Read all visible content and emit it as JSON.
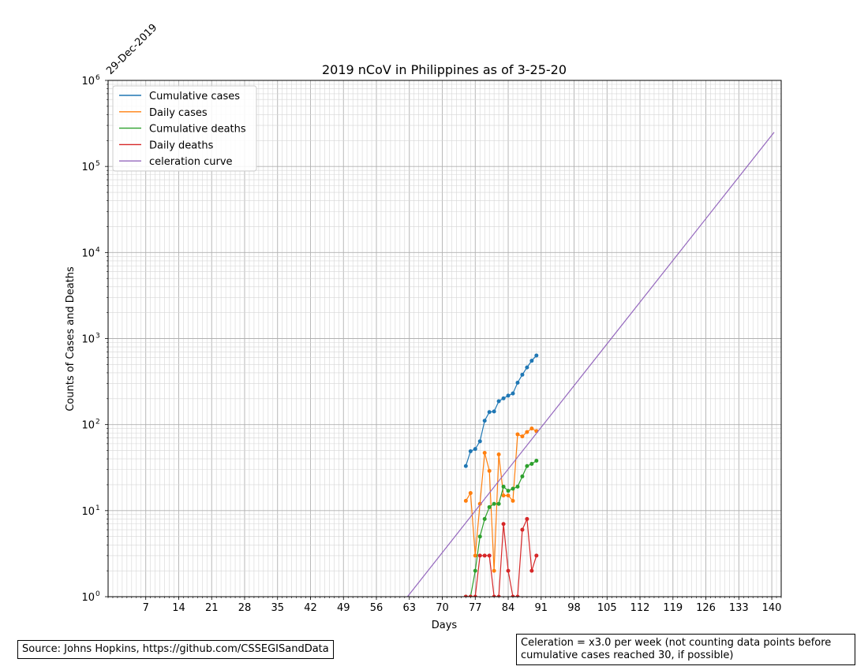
{
  "chart_data": {
    "type": "line",
    "title": "2019 nCoV in Philippines as of 3-25-20",
    "xlabel": "Days",
    "ylabel": "Counts of Cases and Deaths",
    "date_label": "29-Dec-2019",
    "xlim": [
      -1,
      142
    ],
    "ylim": [
      1,
      1000000
    ],
    "yscale": "log",
    "xticks": [
      7,
      14,
      21,
      28,
      35,
      42,
      49,
      56,
      63,
      70,
      77,
      84,
      91,
      98,
      105,
      112,
      119,
      126,
      133,
      140
    ],
    "yticks": [
      {
        "value": 1,
        "base": "10",
        "exp": "0"
      },
      {
        "value": 10,
        "base": "10",
        "exp": "1"
      },
      {
        "value": 100,
        "base": "10",
        "exp": "2"
      },
      {
        "value": 1000,
        "base": "10",
        "exp": "3"
      },
      {
        "value": 10000,
        "base": "10",
        "exp": "4"
      },
      {
        "value": 100000,
        "base": "10",
        "exp": "5"
      },
      {
        "value": 1000000,
        "base": "10",
        "exp": "6"
      }
    ],
    "grid": true,
    "legend_position": "top-left",
    "series": [
      {
        "name": "Cumulative cases",
        "color": "#1f77b4",
        "x": [
          75,
          76,
          77,
          78,
          79,
          80,
          81,
          82,
          83,
          84,
          85,
          86,
          87,
          88,
          89,
          90
        ],
        "y": [
          33,
          49,
          52,
          64,
          111,
          140,
          142,
          187,
          202,
          217,
          230,
          307,
          380,
          462,
          552,
          636
        ]
      },
      {
        "name": "Daily cases",
        "color": "#ff7f0e",
        "x": [
          75,
          76,
          77,
          78,
          79,
          80,
          81,
          82,
          83,
          84,
          85,
          86,
          87,
          88,
          89,
          90
        ],
        "y": [
          13,
          16,
          3,
          12,
          47,
          29,
          2,
          45,
          15,
          15,
          13,
          77,
          73,
          82,
          90,
          84
        ]
      },
      {
        "name": "Cumulative deaths",
        "color": "#2ca02c",
        "x": [
          75,
          76,
          77,
          78,
          79,
          80,
          81,
          82,
          83,
          84,
          85,
          86,
          87,
          88,
          89,
          90
        ],
        "y": [
          1,
          1,
          2,
          5,
          8,
          11,
          12,
          12,
          19,
          17,
          18,
          19,
          25,
          33,
          35,
          38
        ]
      },
      {
        "name": "Daily deaths",
        "color": "#d62728",
        "x": [
          75,
          76,
          77,
          78,
          79,
          80,
          81,
          82,
          83,
          84,
          85,
          86,
          87,
          88,
          89,
          90
        ],
        "y": [
          1,
          1,
          1,
          3,
          3,
          3,
          1,
          1,
          7,
          2,
          1,
          1,
          6,
          8,
          2,
          3
        ]
      },
      {
        "name": "celeration curve",
        "color": "#9467bd",
        "x": [
          62.6,
          140.5
        ],
        "y": [
          1,
          250000
        ]
      }
    ]
  },
  "source_text": "Source: Johns Hopkins, https://github.com/CSSEGISandData",
  "celeration_text_1": "Celeration = x3.0 per week (not counting data points before",
  "celeration_text_2": "cumulative cases reached 30, if possible)"
}
